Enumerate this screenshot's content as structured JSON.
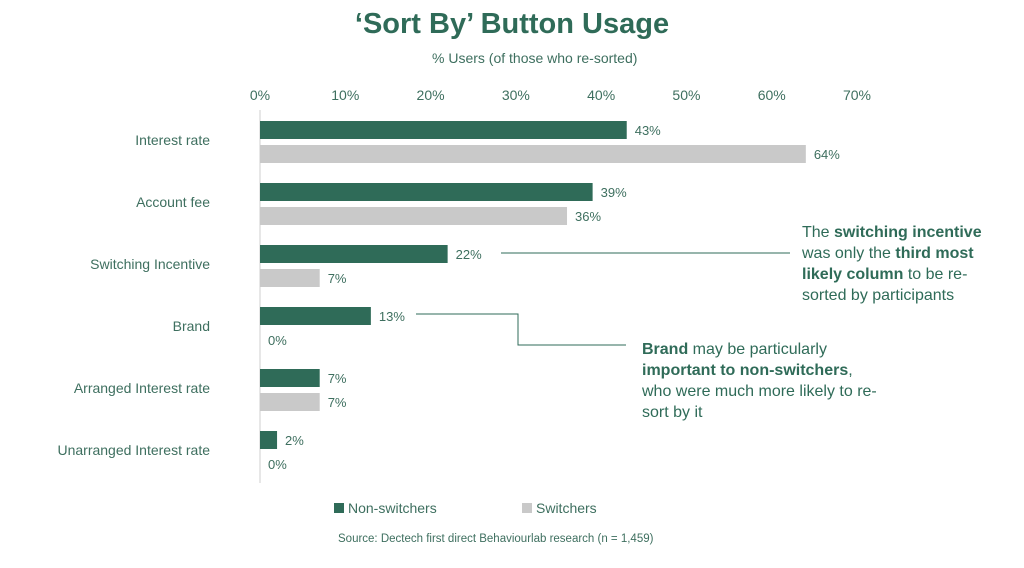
{
  "chart_data": {
    "type": "bar",
    "orientation": "horizontal",
    "title": "‘Sort By’ Button Usage",
    "subtitle": "% Users (of those who re-sorted)",
    "categories": [
      "Interest rate",
      "Account fee",
      "Switching Incentive",
      "Brand",
      "Arranged Interest rate",
      "Unarranged Interest rate"
    ],
    "series": [
      {
        "name": "Non-switchers",
        "color": "#2f6b58",
        "values": [
          43,
          39,
          22,
          13,
          7,
          2
        ]
      },
      {
        "name": "Switchers",
        "color": "#c9c9c9",
        "values": [
          64,
          36,
          7,
          0,
          7,
          0
        ]
      }
    ],
    "data_labels": [
      [
        "43%",
        "39%",
        "22%",
        "13%",
        "7%",
        "2%"
      ],
      [
        "64%",
        "36%",
        "7%",
        "0%",
        "7%",
        "0%"
      ]
    ],
    "xlim": [
      0,
      70
    ],
    "x_ticks": [
      "0%",
      "10%",
      "20%",
      "30%",
      "40%",
      "50%",
      "60%",
      "70%"
    ],
    "x_axis_position": "top",
    "grid": false,
    "legend_position": "bottom"
  },
  "annotations": {
    "switching": {
      "p1": "The ",
      "b1": "switching incentive",
      "p2": " was only the ",
      "b2": "third most likely column",
      "p3": " to be re-sorted by participants"
    },
    "brand": {
      "b1": "Brand",
      "p1": " may be particularly ",
      "b2": "important to non-switchers",
      "p2": ", who were much more likely to re-sort by it"
    }
  },
  "legend": {
    "non_switchers": "Non-switchers",
    "switchers": "Switchers"
  },
  "source": "Source: Dectech first direct Behaviourlab research (n = 1,459)",
  "colors": {
    "accent": "#2f6b58",
    "switchers": "#c9c9c9"
  }
}
